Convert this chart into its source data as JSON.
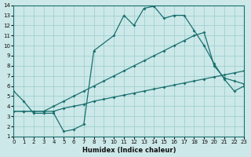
{
  "xlabel": "Humidex (Indice chaleur)",
  "background_color": "#cce8e8",
  "grid_color": "#99cccc",
  "line_color": "#1a7070",
  "xlim": [
    0,
    23
  ],
  "ylim": [
    1,
    14
  ],
  "xticks": [
    0,
    1,
    2,
    3,
    4,
    5,
    6,
    7,
    8,
    9,
    10,
    11,
    12,
    13,
    14,
    15,
    16,
    17,
    18,
    19,
    20,
    21,
    22,
    23
  ],
  "yticks": [
    1,
    2,
    3,
    4,
    5,
    6,
    7,
    8,
    9,
    10,
    11,
    12,
    13,
    14
  ],
  "series1_x": [
    0,
    1,
    2,
    3,
    4,
    5,
    6,
    7,
    8,
    10,
    11,
    12,
    13,
    14,
    15,
    16,
    17,
    18,
    19,
    20,
    21,
    22,
    23
  ],
  "series1_y": [
    5.5,
    4.5,
    3.3,
    3.3,
    3.3,
    1.5,
    1.7,
    2.2,
    9.5,
    11.0,
    13.0,
    12.0,
    13.7,
    13.9,
    12.7,
    13.0,
    13.0,
    11.5,
    10.0,
    8.2,
    6.7,
    5.5,
    6.0
  ],
  "series2_x": [
    0,
    1,
    2,
    3,
    4,
    5,
    6,
    7,
    8,
    9,
    10,
    11,
    12,
    13,
    14,
    15,
    16,
    17,
    18,
    19,
    20,
    21,
    22,
    23
  ],
  "series2_y": [
    3.5,
    3.5,
    3.5,
    3.5,
    3.5,
    3.8,
    4.0,
    4.2,
    4.5,
    4.7,
    4.9,
    5.1,
    5.3,
    5.5,
    5.7,
    5.9,
    6.1,
    6.3,
    6.5,
    6.7,
    6.9,
    7.1,
    7.3,
    7.5
  ],
  "series3_x": [
    0,
    1,
    2,
    3,
    4,
    5,
    6,
    7,
    8,
    9,
    10,
    11,
    12,
    13,
    14,
    15,
    16,
    17,
    18,
    19,
    20,
    21,
    22,
    23
  ],
  "series3_y": [
    3.5,
    3.5,
    3.5,
    3.5,
    4.0,
    4.5,
    5.0,
    5.5,
    6.0,
    6.5,
    7.0,
    7.5,
    8.0,
    8.5,
    9.0,
    9.5,
    10.0,
    10.5,
    11.0,
    11.3,
    8.0,
    6.8,
    6.5,
    6.2
  ]
}
